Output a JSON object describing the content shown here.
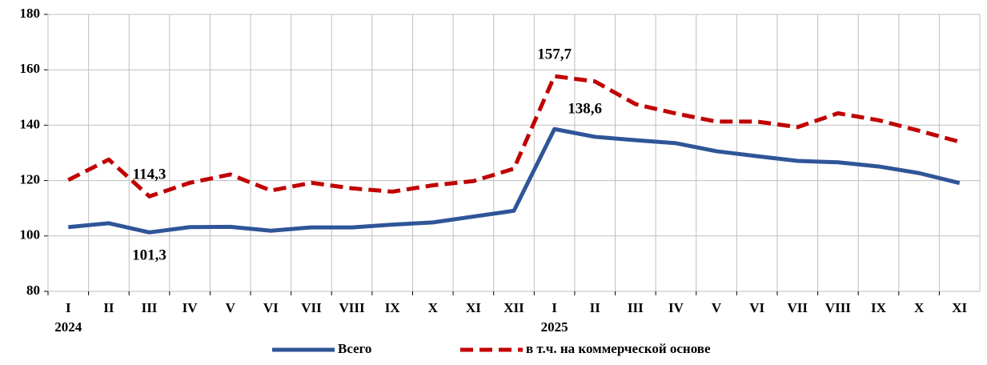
{
  "chart_data": {
    "type": "line",
    "categories": [
      "I",
      "II",
      "III",
      "IV",
      "V",
      "VI",
      "VII",
      "VIII",
      "IX",
      "X",
      "XI",
      "XII",
      "I",
      "II",
      "III",
      "IV",
      "V",
      "VI",
      "VII",
      "VIII",
      "IX",
      "X",
      "XI"
    ],
    "years": [
      "2024",
      null,
      null,
      null,
      null,
      null,
      null,
      null,
      null,
      null,
      null,
      null,
      "2025",
      null,
      null,
      null,
      null,
      null,
      null,
      null,
      null,
      null,
      null
    ],
    "series": [
      {
        "name": "Всего",
        "color": "#2f5597",
        "dash": false,
        "values": [
          103.2,
          104.6,
          101.3,
          103.2,
          103.3,
          101.9,
          103.1,
          103.1,
          104.1,
          104.9,
          107.0,
          109.1,
          138.6,
          135.8,
          134.6,
          133.5,
          130.6,
          128.8,
          127.1,
          126.6,
          125.1,
          122.7,
          119.1
        ],
        "value_labels": [
          null,
          null,
          "101,3",
          null,
          null,
          null,
          null,
          null,
          null,
          null,
          null,
          null,
          "138,6",
          null,
          null,
          null,
          null,
          null,
          null,
          null,
          null,
          null,
          null
        ]
      },
      {
        "name": "в т.ч. на коммерческой основе",
        "color": "#c00000",
        "dash": true,
        "values": [
          120.2,
          127.6,
          114.3,
          119.2,
          122.2,
          116.4,
          119.2,
          117.2,
          116.0,
          118.3,
          119.8,
          124.3,
          157.7,
          155.8,
          147.6,
          144.2,
          141.3,
          141.3,
          139.3,
          144.3,
          141.8,
          138.0,
          134.0
        ],
        "value_labels": [
          null,
          null,
          "114,3",
          null,
          null,
          null,
          null,
          null,
          null,
          null,
          null,
          null,
          "157,7",
          null,
          null,
          null,
          null,
          null,
          null,
          null,
          null,
          null,
          null
        ]
      }
    ],
    "ylim": [
      80,
      180
    ],
    "yticks": [
      80,
      100,
      120,
      140,
      160,
      180
    ],
    "grid": true,
    "legend": "bottom"
  }
}
